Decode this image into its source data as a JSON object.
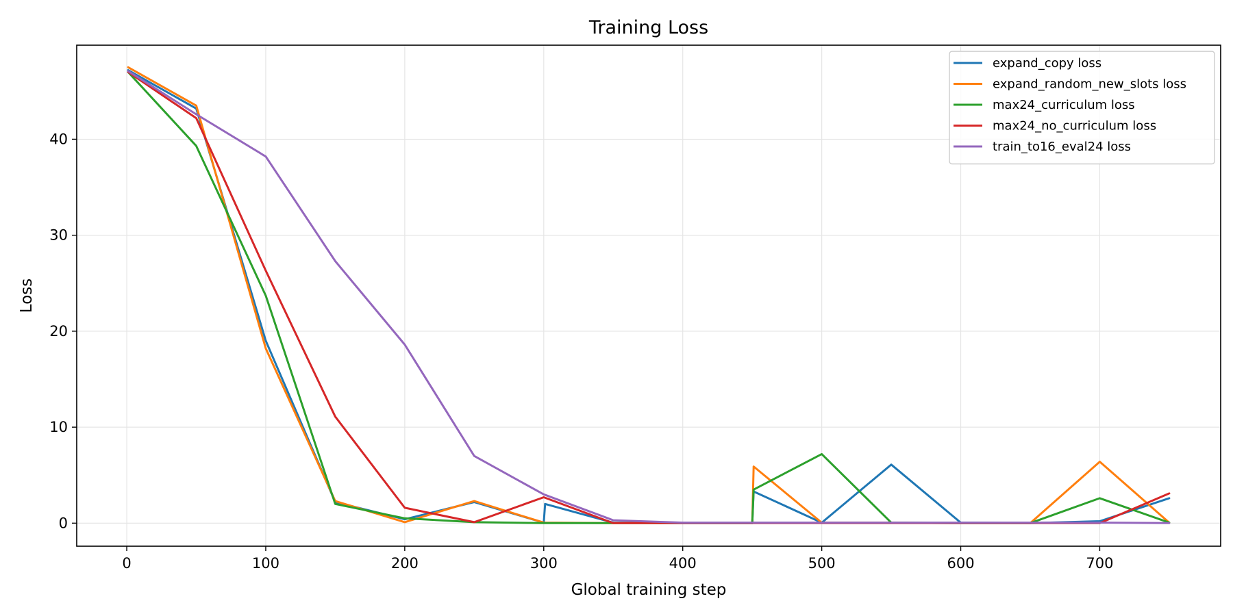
{
  "chart_data": {
    "type": "line",
    "title": "Training Loss",
    "xlabel": "Global training step",
    "ylabel": "Loss",
    "xlim": [
      -36,
      787
    ],
    "ylim": [
      -2.4,
      49.8
    ],
    "xticks": [
      0,
      100,
      200,
      300,
      400,
      500,
      600,
      700
    ],
    "yticks": [
      0,
      10,
      20,
      30,
      40
    ],
    "grid": true,
    "legend_position": "top-right",
    "series": [
      {
        "name": "expand_copy loss",
        "color": "#1f77b4",
        "x": [
          1,
          50,
          100,
          150,
          200,
          250,
          300,
          301,
          350,
          400,
          450,
          451,
          500,
          550,
          600,
          650,
          700,
          750
        ],
        "y": [
          47.2,
          43.2,
          19.0,
          2.2,
          0.4,
          2.2,
          0.05,
          2.0,
          0.05,
          0.0,
          0.0,
          3.3,
          0.05,
          6.1,
          0.05,
          0.0,
          0.2,
          2.6
        ]
      },
      {
        "name": "expand_random_new_slots loss",
        "color": "#ff7f0e",
        "x": [
          1,
          50,
          100,
          150,
          200,
          250,
          300,
          350,
          400,
          450,
          451,
          500,
          550,
          600,
          650,
          700,
          750
        ],
        "y": [
          47.5,
          43.5,
          18.2,
          2.3,
          0.1,
          2.3,
          0.05,
          0.0,
          0.0,
          0.0,
          5.9,
          0.05,
          0.05,
          0.0,
          0.0,
          6.4,
          0.05
        ]
      },
      {
        "name": "max24_curriculum loss",
        "color": "#2ca02c",
        "x": [
          1,
          50,
          100,
          150,
          200,
          250,
          300,
          350,
          400,
          450,
          451,
          500,
          550,
          600,
          650,
          700,
          750
        ],
        "y": [
          47.0,
          39.3,
          23.7,
          2.0,
          0.5,
          0.1,
          0.0,
          0.0,
          0.0,
          0.0,
          3.5,
          7.2,
          0.05,
          0.0,
          0.0,
          2.6,
          0.05
        ]
      },
      {
        "name": "max24_no_curriculum loss",
        "color": "#d62728",
        "x": [
          1,
          50,
          100,
          150,
          200,
          250,
          300,
          350,
          400,
          450,
          500,
          550,
          600,
          650,
          700,
          750
        ],
        "y": [
          47.0,
          42.2,
          26.3,
          11.1,
          1.6,
          0.1,
          2.7,
          0.0,
          0.0,
          0.0,
          0.0,
          0.0,
          0.0,
          0.0,
          0.0,
          3.1
        ]
      },
      {
        "name": "train_to16_eval24 loss",
        "color": "#9467bd",
        "x": [
          1,
          50,
          100,
          150,
          200,
          250,
          300,
          350,
          400,
          450,
          500,
          550,
          600,
          650,
          700,
          750
        ],
        "y": [
          47.1,
          42.6,
          38.2,
          27.3,
          18.6,
          7.0,
          3.0,
          0.3,
          0.05,
          0.05,
          0.05,
          0.05,
          0.05,
          0.05,
          0.05,
          0.0
        ]
      }
    ]
  }
}
